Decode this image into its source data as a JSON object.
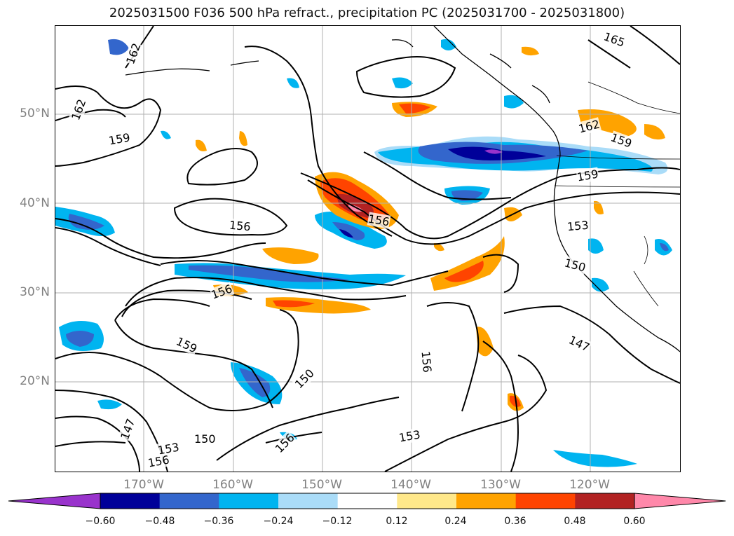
{
  "title": "2025031500 F036 500 hPa refract., precipitation PC (2025031700 - 2025031800)",
  "lat_labels": [
    "50°N",
    "40°N",
    "30°N",
    "20°N"
  ],
  "lon_labels": [
    "170°W",
    "160°W",
    "150°W",
    "140°W",
    "130°W",
    "120°W"
  ],
  "contour_labels": [
    "165",
    "162",
    "162",
    "159",
    "156",
    "156",
    "156",
    "159",
    "153",
    "150",
    "150",
    "147",
    "147",
    "156",
    "153",
    "150",
    "156",
    "156",
    "153",
    "162",
    "159",
    "159"
  ],
  "colorbar": {
    "ticks": [
      "−0.60",
      "−0.48",
      "−0.36",
      "−0.24",
      "−0.12",
      "0.12",
      "0.24",
      "0.36",
      "0.48",
      "0.60"
    ],
    "colors": [
      "#9933cc",
      "#000099",
      "#3366cc",
      "#00b4f0",
      "#aadcf8",
      "#ffffff",
      "#ffe88a",
      "#ffa300",
      "#ff4400",
      "#b22222",
      "#ff88aa"
    ]
  },
  "colors": {
    "contour": "#000000",
    "grid": "#b0b0b0",
    "coast": "#000000",
    "label": "#808080"
  }
}
